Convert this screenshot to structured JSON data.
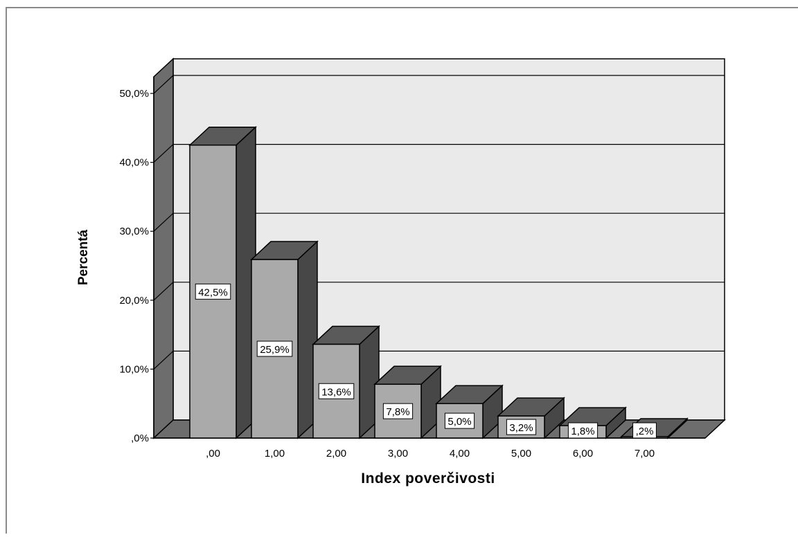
{
  "chart_data": {
    "type": "bar",
    "title": "",
    "xlabel": "Index poverčivosti",
    "ylabel": "Percentá",
    "categories": [
      ",00",
      "1,00",
      "2,00",
      "3,00",
      "4,00",
      "5,00",
      "6,00",
      "7,00"
    ],
    "values": [
      42.5,
      25.9,
      13.6,
      7.8,
      5.0,
      3.2,
      1.8,
      0.2
    ],
    "value_labels": [
      "42,5%",
      "25,9%",
      "13,6%",
      "7,8%",
      "5,0%",
      "3,2%",
      "1,8%",
      ",2%"
    ],
    "ylim": [
      0,
      50
    ],
    "yticks": [
      0,
      10,
      20,
      30,
      40,
      50
    ],
    "ytick_labels": [
      ",0%",
      "10,0%",
      "20,0%",
      "30,0%",
      "40,0%",
      "50,0%"
    ],
    "grid": true,
    "style": "3d-bar",
    "colors": {
      "bar_front": "#aaaaaa",
      "bar_side": "#474747",
      "bar_top": "#5a5a5a",
      "back_wall": "#eaeaea",
      "side_wall": "#6d6d6d",
      "floor": "#6d6d6d",
      "frame_border": "#8a8a8a"
    }
  }
}
